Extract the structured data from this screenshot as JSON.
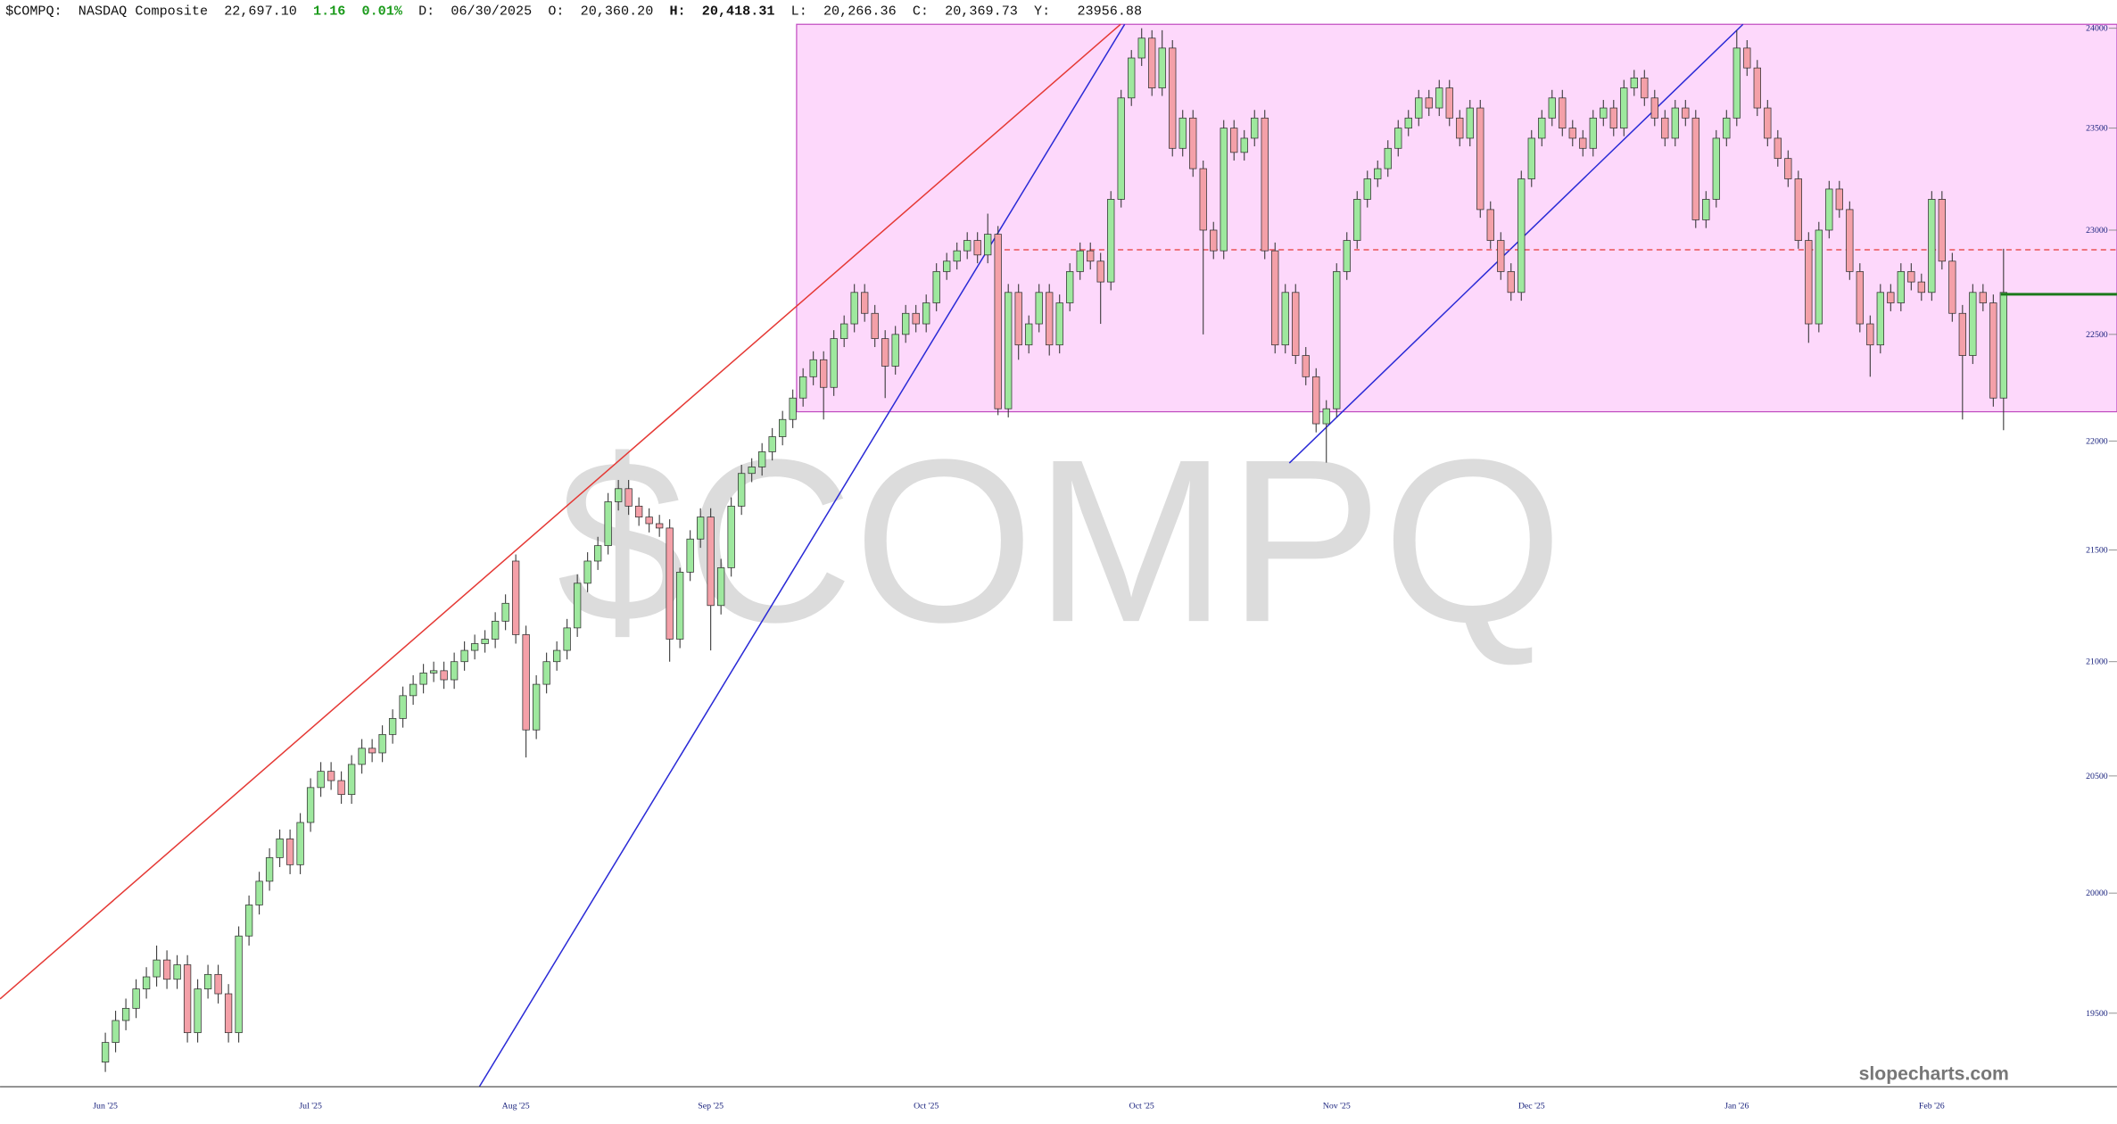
{
  "header": {
    "symbol": "$COMPQ:",
    "name": "NASDAQ Composite",
    "last": "22,697.10",
    "change": "1.16",
    "pct": "0.01%",
    "d_label": "D:",
    "date": "06/30/2025",
    "o_label": "O:",
    "open": "20,360.20",
    "h_label": "H:",
    "high": "20,418.31",
    "l_label": "L:",
    "low": "20,266.36",
    "c_label": "C:",
    "close": "20,369.73",
    "y_label": "Y:",
    "y_value": "23956.88"
  },
  "watermark": "$COMPQ",
  "brand": "slopecharts.com",
  "chart_data": {
    "type": "candlestick",
    "log_scale": true,
    "up_color": "#9ee89e",
    "down_color": "#f4a0a8",
    "ylim": [
      19200,
      24020
    ],
    "yticks": [
      19500,
      20000,
      20500,
      21000,
      21500,
      22000,
      22500,
      23000,
      23500,
      24000
    ],
    "categories": [
      "Jun '25",
      null,
      null,
      null,
      null,
      null,
      null,
      null,
      null,
      null,
      null,
      null,
      null,
      null,
      null,
      null,
      null,
      null,
      null,
      null,
      "Jul '25",
      null,
      null,
      null,
      null,
      null,
      null,
      null,
      null,
      null,
      null,
      null,
      null,
      null,
      null,
      null,
      null,
      null,
      null,
      null,
      "Aug '25",
      null,
      null,
      null,
      null,
      null,
      null,
      null,
      null,
      null,
      null,
      null,
      null,
      null,
      null,
      null,
      null,
      null,
      null,
      "Sep '25",
      null,
      null,
      null,
      null,
      null,
      null,
      null,
      null,
      null,
      null,
      null,
      null,
      null,
      null,
      null,
      null,
      null,
      null,
      null,
      null,
      "Oct '25",
      null,
      null,
      null,
      null,
      null,
      null,
      null,
      null,
      null,
      null,
      null,
      null,
      null,
      null,
      null,
      null,
      null,
      null,
      null,
      null,
      "Oct '25",
      null,
      null,
      null,
      null,
      null,
      null,
      null,
      null,
      null,
      null,
      null,
      null,
      null,
      null,
      null,
      null,
      null,
      null,
      "Nov '25",
      null,
      null,
      null,
      null,
      null,
      null,
      null,
      null,
      null,
      null,
      null,
      null,
      null,
      null,
      null,
      null,
      null,
      null,
      "Dec '25",
      null,
      null,
      null,
      null,
      null,
      null,
      null,
      null,
      null,
      null,
      null,
      null,
      null,
      null,
      null,
      null,
      null,
      null,
      null,
      "Jan '26",
      null,
      null,
      null,
      null,
      null,
      null,
      null,
      null,
      null,
      null,
      null,
      null,
      null,
      null,
      null,
      null,
      null,
      null,
      "Feb '26",
      null,
      null,
      null,
      null,
      null,
      null,
      null
    ],
    "values": [
      [
        19300,
        19420,
        19260,
        19380
      ],
      [
        19380,
        19510,
        19340,
        19470
      ],
      [
        19470,
        19560,
        19430,
        19520
      ],
      [
        19520,
        19640,
        19480,
        19600
      ],
      [
        19600,
        19690,
        19560,
        19650
      ],
      [
        19650,
        19780,
        19610,
        19720
      ],
      [
        19720,
        19760,
        19600,
        19640
      ],
      [
        19640,
        19740,
        19600,
        19700
      ],
      [
        19700,
        19740,
        19380,
        19420
      ],
      [
        19420,
        19640,
        19380,
        19600
      ],
      [
        19600,
        19700,
        19560,
        19660
      ],
      [
        19660,
        19700,
        19540,
        19580
      ],
      [
        19580,
        19620,
        19380,
        19420
      ],
      [
        19420,
        19860,
        19380,
        19820
      ],
      [
        19820,
        19990,
        19780,
        19950
      ],
      [
        19950,
        20090,
        19910,
        20050
      ],
      [
        20050,
        20190,
        20010,
        20150
      ],
      [
        20150,
        20270,
        20110,
        20230
      ],
      [
        20230,
        20270,
        20080,
        20120
      ],
      [
        20120,
        20340,
        20080,
        20300
      ],
      [
        20300,
        20490,
        20260,
        20450
      ],
      [
        20450,
        20560,
        20410,
        20520
      ],
      [
        20520,
        20560,
        20440,
        20480
      ],
      [
        20480,
        20520,
        20380,
        20420
      ],
      [
        20420,
        20590,
        20380,
        20550
      ],
      [
        20550,
        20660,
        20510,
        20620
      ],
      [
        20620,
        20660,
        20560,
        20600
      ],
      [
        20600,
        20720,
        20560,
        20680
      ],
      [
        20680,
        20790,
        20640,
        20750
      ],
      [
        20750,
        20890,
        20710,
        20850
      ],
      [
        20850,
        20940,
        20810,
        20900
      ],
      [
        20900,
        20990,
        20860,
        20950
      ],
      [
        20950,
        21000,
        20910,
        20960
      ],
      [
        20960,
        21000,
        20880,
        20920
      ],
      [
        20920,
        21040,
        20880,
        21000
      ],
      [
        21000,
        21090,
        20960,
        21050
      ],
      [
        21050,
        21120,
        21010,
        21080
      ],
      [
        21080,
        21140,
        21040,
        21100
      ],
      [
        21100,
        21220,
        21060,
        21180
      ],
      [
        21180,
        21300,
        21140,
        21260
      ],
      [
        21450,
        21480,
        21080,
        21120
      ],
      [
        21120,
        21160,
        20580,
        20700
      ],
      [
        20700,
        20940,
        20660,
        20900
      ],
      [
        20900,
        21040,
        20860,
        21000
      ],
      [
        21000,
        21090,
        20960,
        21050
      ],
      [
        21050,
        21190,
        21010,
        21150
      ],
      [
        21150,
        21390,
        21110,
        21350
      ],
      [
        21350,
        21490,
        21310,
        21450
      ],
      [
        21450,
        21560,
        21410,
        21520
      ],
      [
        21520,
        21760,
        21480,
        21720
      ],
      [
        21720,
        21820,
        21680,
        21780
      ],
      [
        21780,
        21820,
        21660,
        21700
      ],
      [
        21700,
        21740,
        21610,
        21650
      ],
      [
        21650,
        21690,
        21580,
        21620
      ],
      [
        21620,
        21660,
        21560,
        21600
      ],
      [
        21600,
        21640,
        21000,
        21100
      ],
      [
        21100,
        21420,
        21060,
        21400
      ],
      [
        21400,
        21590,
        21360,
        21550
      ],
      [
        21550,
        21690,
        21510,
        21650
      ],
      [
        21650,
        21690,
        21050,
        21250
      ],
      [
        21250,
        21460,
        21210,
        21420
      ],
      [
        21420,
        21740,
        21380,
        21700
      ],
      [
        21700,
        21890,
        21660,
        21850
      ],
      [
        21850,
        21920,
        21810,
        21880
      ],
      [
        21880,
        21990,
        21840,
        21950
      ],
      [
        21950,
        22060,
        21910,
        22020
      ],
      [
        22020,
        22140,
        21980,
        22100
      ],
      [
        22100,
        22240,
        22060,
        22200
      ],
      [
        22200,
        22340,
        22160,
        22300
      ],
      [
        22300,
        22420,
        22260,
        22380
      ],
      [
        22380,
        22420,
        22100,
        22250
      ],
      [
        22250,
        22520,
        22210,
        22480
      ],
      [
        22480,
        22590,
        22440,
        22550
      ],
      [
        22550,
        22740,
        22510,
        22700
      ],
      [
        22700,
        22740,
        22560,
        22600
      ],
      [
        22600,
        22640,
        22440,
        22480
      ],
      [
        22480,
        22520,
        22200,
        22350
      ],
      [
        22350,
        22540,
        22310,
        22500
      ],
      [
        22500,
        22640,
        22460,
        22600
      ],
      [
        22600,
        22640,
        22510,
        22550
      ],
      [
        22550,
        22690,
        22510,
        22650
      ],
      [
        22650,
        22840,
        22610,
        22800
      ],
      [
        22800,
        22890,
        22760,
        22850
      ],
      [
        22850,
        22940,
        22810,
        22900
      ],
      [
        22900,
        22990,
        22860,
        22950
      ],
      [
        22950,
        22990,
        22840,
        22880
      ],
      [
        22880,
        23080,
        22840,
        22980
      ],
      [
        22980,
        23020,
        22120,
        22150
      ],
      [
        22150,
        22740,
        22110,
        22700
      ],
      [
        22700,
        22740,
        22380,
        22450
      ],
      [
        22450,
        22590,
        22410,
        22550
      ],
      [
        22550,
        22740,
        22510,
        22700
      ],
      [
        22700,
        22740,
        22400,
        22450
      ],
      [
        22450,
        22690,
        22410,
        22650
      ],
      [
        22650,
        22840,
        22610,
        22800
      ],
      [
        22800,
        22940,
        22760,
        22900
      ],
      [
        22900,
        22940,
        22810,
        22850
      ],
      [
        22850,
        22890,
        22550,
        22750
      ],
      [
        22750,
        23190,
        22710,
        23150
      ],
      [
        23150,
        23690,
        23110,
        23650
      ],
      [
        23650,
        23890,
        23610,
        23850
      ],
      [
        23850,
        24000,
        23810,
        23950
      ],
      [
        23950,
        23990,
        23660,
        23700
      ],
      [
        23700,
        23990,
        23660,
        23900
      ],
      [
        23900,
        23940,
        23360,
        23400
      ],
      [
        23400,
        23590,
        23360,
        23550
      ],
      [
        23550,
        23590,
        23260,
        23300
      ],
      [
        23300,
        23340,
        22500,
        23000
      ],
      [
        23000,
        23040,
        22860,
        22900
      ],
      [
        22900,
        23540,
        22860,
        23500
      ],
      [
        23500,
        23540,
        23340,
        23380
      ],
      [
        23380,
        23490,
        23340,
        23450
      ],
      [
        23450,
        23590,
        23410,
        23550
      ],
      [
        23550,
        23590,
        22860,
        22900
      ],
      [
        22900,
        22940,
        22410,
        22450
      ],
      [
        22450,
        22740,
        22410,
        22700
      ],
      [
        22700,
        22740,
        22360,
        22400
      ],
      [
        22400,
        22440,
        22260,
        22300
      ],
      [
        22300,
        22340,
        22040,
        22080
      ],
      [
        22080,
        22190,
        21900,
        22150
      ],
      [
        22150,
        22840,
        22110,
        22800
      ],
      [
        22800,
        22990,
        22760,
        22950
      ],
      [
        22950,
        23190,
        22910,
        23150
      ],
      [
        23150,
        23290,
        23110,
        23250
      ],
      [
        23250,
        23340,
        23210,
        23300
      ],
      [
        23300,
        23440,
        23260,
        23400
      ],
      [
        23400,
        23540,
        23360,
        23500
      ],
      [
        23500,
        23590,
        23460,
        23550
      ],
      [
        23550,
        23690,
        23510,
        23650
      ],
      [
        23650,
        23690,
        23560,
        23600
      ],
      [
        23600,
        23740,
        23560,
        23700
      ],
      [
        23700,
        23740,
        23510,
        23550
      ],
      [
        23550,
        23590,
        23410,
        23450
      ],
      [
        23450,
        23640,
        23410,
        23600
      ],
      [
        23600,
        23640,
        23060,
        23100
      ],
      [
        23100,
        23140,
        22910,
        22950
      ],
      [
        22950,
        22990,
        22760,
        22800
      ],
      [
        22800,
        22840,
        22660,
        22700
      ],
      [
        22700,
        23290,
        22660,
        23250
      ],
      [
        23250,
        23490,
        23210,
        23450
      ],
      [
        23450,
        23590,
        23410,
        23550
      ],
      [
        23550,
        23690,
        23510,
        23650
      ],
      [
        23650,
        23690,
        23460,
        23500
      ],
      [
        23500,
        23540,
        23410,
        23450
      ],
      [
        23450,
        23490,
        23360,
        23400
      ],
      [
        23400,
        23590,
        23360,
        23550
      ],
      [
        23550,
        23640,
        23510,
        23600
      ],
      [
        23600,
        23640,
        23460,
        23500
      ],
      [
        23500,
        23740,
        23460,
        23700
      ],
      [
        23700,
        23790,
        23660,
        23750
      ],
      [
        23750,
        23790,
        23610,
        23650
      ],
      [
        23650,
        23690,
        23510,
        23550
      ],
      [
        23550,
        23590,
        23410,
        23450
      ],
      [
        23450,
        23640,
        23410,
        23600
      ],
      [
        23600,
        23640,
        23510,
        23550
      ],
      [
        23550,
        23590,
        23010,
        23050
      ],
      [
        23050,
        23190,
        23010,
        23150
      ],
      [
        23150,
        23490,
        23110,
        23450
      ],
      [
        23450,
        23590,
        23410,
        23550
      ],
      [
        23550,
        23990,
        23510,
        23900
      ],
      [
        23900,
        23940,
        23760,
        23800
      ],
      [
        23800,
        23840,
        23560,
        23600
      ],
      [
        23600,
        23640,
        23410,
        23450
      ],
      [
        23450,
        23490,
        23310,
        23350
      ],
      [
        23350,
        23390,
        23210,
        23250
      ],
      [
        23250,
        23290,
        22910,
        22950
      ],
      [
        22950,
        22990,
        22460,
        22550
      ],
      [
        22550,
        23040,
        22510,
        23000
      ],
      [
        23000,
        23240,
        22960,
        23200
      ],
      [
        23200,
        23240,
        23060,
        23100
      ],
      [
        23100,
        23140,
        22760,
        22800
      ],
      [
        22800,
        22840,
        22510,
        22550
      ],
      [
        22550,
        22590,
        22300,
        22450
      ],
      [
        22450,
        22740,
        22410,
        22700
      ],
      [
        22700,
        22740,
        22610,
        22650
      ],
      [
        22650,
        22840,
        22610,
        22800
      ],
      [
        22800,
        22840,
        22710,
        22750
      ],
      [
        22750,
        22790,
        22660,
        22700
      ],
      [
        22700,
        23190,
        22660,
        23150
      ],
      [
        23150,
        23190,
        22810,
        22850
      ],
      [
        22850,
        22890,
        22560,
        22600
      ],
      [
        22600,
        22640,
        22100,
        22400
      ],
      [
        22400,
        22740,
        22360,
        22700
      ],
      [
        22700,
        22740,
        22610,
        22650
      ],
      [
        22650,
        22690,
        22160,
        22200
      ],
      [
        22200,
        22910,
        22050,
        22700
      ]
    ]
  }
}
